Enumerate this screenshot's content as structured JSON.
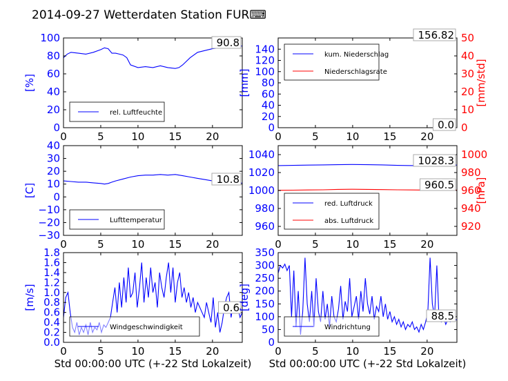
{
  "title": "2014-09-27 Wetterdaten Station FUR⌨",
  "colors": {
    "blue": "#0000ff",
    "red": "#ff0000",
    "black": "#000000",
    "light_blue": "#9999ff"
  },
  "chart_data": [
    {
      "id": "humidity",
      "type": "line",
      "xlim": [
        0,
        24
      ],
      "ylim": [
        0,
        100
      ],
      "xticks": [
        "0",
        "5",
        "10",
        "15",
        "20"
      ],
      "yticks": [
        "0",
        "20",
        "40",
        "60",
        "80",
        "100"
      ],
      "ylabel": "[%]",
      "xlabel": "",
      "legend_placement": "lower-left",
      "annotation": "90.8",
      "series": [
        {
          "name": "rel. Luftfeuchte",
          "color": "#0000ff",
          "x": [
            0,
            0.5,
            1,
            2,
            3,
            4,
            5,
            5.5,
            6,
            6.5,
            7,
            7.5,
            8,
            8.5,
            9,
            10,
            11,
            12,
            13,
            14,
            15,
            15.5,
            16,
            17,
            18,
            19,
            20,
            21,
            22,
            23,
            24
          ],
          "y": [
            78,
            82,
            84,
            83,
            82,
            84,
            87,
            89,
            88,
            83,
            83,
            82,
            81,
            78,
            70,
            67,
            68,
            67,
            69,
            67,
            66,
            67,
            70,
            78,
            84,
            86,
            88,
            89,
            90,
            91,
            91
          ]
        }
      ]
    },
    {
      "id": "precipitation",
      "type": "line",
      "xlim": [
        0,
        24
      ],
      "ylim": [
        0,
        160
      ],
      "ylim_right": [
        0,
        50
      ],
      "xticks": [
        "0",
        "5",
        "10",
        "15",
        "20"
      ],
      "yticks": [
        "0",
        "20",
        "40",
        "60",
        "80",
        "100",
        "120",
        "140"
      ],
      "yticks_right": [
        "0",
        "10",
        "20",
        "30",
        "40",
        "50"
      ],
      "ylabel": "[mm]",
      "ylabel_right": "[mm/std]",
      "xlabel": "",
      "legend_placement": "upper-left",
      "annotation": "156.82",
      "annotation_right": "0.0",
      "series": [
        {
          "name": "kum. Niederschlag",
          "color": "#0000ff",
          "axis": "left",
          "x": [
            0,
            24
          ],
          "y": [
            0,
            0
          ]
        },
        {
          "name": "Niederschlagsrate",
          "color": "#ff0000",
          "axis": "right",
          "x": [
            0,
            24
          ],
          "y": [
            0,
            0
          ]
        }
      ]
    },
    {
      "id": "temperature",
      "type": "line",
      "xlim": [
        0,
        24
      ],
      "ylim": [
        -30,
        40
      ],
      "xticks": [
        "0",
        "5",
        "10",
        "15",
        "20"
      ],
      "yticks": [
        "−30",
        "−20",
        "−10",
        "0",
        "10",
        "20",
        "30",
        "40"
      ],
      "ylabel": "[C]",
      "xlabel": "",
      "legend_placement": "lower-left",
      "annotation": "10.8",
      "series": [
        {
          "name": "Lufttemperatur",
          "color": "#0000ff",
          "x": [
            0,
            1,
            2,
            3,
            4,
            5,
            5.5,
            6,
            6.5,
            7,
            8,
            9,
            10,
            11,
            12,
            13,
            14,
            15,
            16,
            17,
            18,
            19,
            20,
            21,
            22,
            23,
            24
          ],
          "y": [
            12.5,
            12,
            11.5,
            11.5,
            11,
            10.5,
            10,
            10.5,
            11.5,
            12.5,
            14,
            15.5,
            16.5,
            17,
            17,
            17.5,
            17,
            17.5,
            16.5,
            15.5,
            14.5,
            13.5,
            12.5,
            11.5,
            11,
            10.8,
            10.8
          ]
        }
      ]
    },
    {
      "id": "pressure",
      "type": "line",
      "xlim": [
        0,
        24
      ],
      "ylim": [
        950,
        1050
      ],
      "ylim_right": [
        910,
        1010
      ],
      "xticks": [
        "0",
        "5",
        "10",
        "15",
        "20"
      ],
      "yticks": [
        "960",
        "980",
        "1000",
        "1020",
        "1040"
      ],
      "yticks_right": [
        "920",
        "940",
        "960",
        "980",
        "1000"
      ],
      "ylabel": "",
      "ylabel_right": "[hPa]",
      "xlabel": "",
      "legend_placement": "lower-left",
      "annotation": "1028.3",
      "annotation_right": "960.5",
      "series": [
        {
          "name": "red. Luftdruck",
          "color": "#0000ff",
          "axis": "left",
          "x": [
            0,
            2,
            4,
            6,
            8,
            10,
            12,
            14,
            16,
            18,
            20,
            22,
            24
          ],
          "y": [
            1027.8,
            1028,
            1028.3,
            1028.5,
            1028.8,
            1029,
            1028.8,
            1028.5,
            1028,
            1027.8,
            1028,
            1028.2,
            1028.3
          ]
        },
        {
          "name": "abs. Luftdruck",
          "color": "#ff0000",
          "axis": "right",
          "x": [
            0,
            2,
            4,
            6,
            8,
            10,
            12,
            14,
            16,
            18,
            20,
            22,
            24
          ],
          "y": [
            960.2,
            960.4,
            960.6,
            960.8,
            961.2,
            961.4,
            961.2,
            961,
            960.8,
            960.6,
            960.5,
            960.5,
            960.5
          ]
        }
      ]
    },
    {
      "id": "wind_speed",
      "type": "line",
      "xlim": [
        0,
        24
      ],
      "ylim": [
        0,
        1.8
      ],
      "xticks": [
        "0",
        "5",
        "10",
        "15",
        "20"
      ],
      "yticks": [
        "0.0",
        "0.2",
        "0.4",
        "0.6",
        "0.8",
        "1.0",
        "1.2",
        "1.4",
        "1.6",
        "1.8"
      ],
      "ylabel": "[m/s]",
      "xlabel": "Std 00:00:00 UTC (+-22 Std Lokalzeit)",
      "legend_placement": "lower-left",
      "annotation": "0.6",
      "series": [
        {
          "name": "Windgeschwindigkeit",
          "color": "#0000ff",
          "x": [
            0,
            0.3,
            0.6,
            0.9,
            1.2,
            1.5,
            1.8,
            2.1,
            2.4,
            2.7,
            3,
            3.3,
            3.6,
            3.9,
            4.2,
            4.5,
            4.8,
            5.1,
            5.4,
            5.7,
            6,
            6.3,
            6.6,
            6.9,
            7.2,
            7.5,
            7.8,
            8.1,
            8.4,
            8.7,
            9,
            9.3,
            9.6,
            9.9,
            10.2,
            10.5,
            10.8,
            11.1,
            11.4,
            11.7,
            12,
            12.3,
            12.6,
            12.9,
            13.2,
            13.5,
            13.8,
            14.1,
            14.4,
            14.7,
            15,
            15.3,
            15.6,
            15.9,
            16.2,
            16.5,
            16.8,
            17.1,
            17.4,
            17.7,
            18,
            18.3,
            18.6,
            18.9,
            19.2,
            19.5,
            19.8,
            20.1,
            20.4,
            20.7,
            21,
            21.3,
            21.6,
            21.9,
            22.2,
            22.5,
            22.8,
            23.1,
            23.4,
            23.7,
            24
          ],
          "y": [
            0.5,
            0.9,
            1.0,
            0.6,
            0.3,
            0.2,
            0.4,
            0.15,
            0.3,
            0.2,
            0.35,
            0.15,
            0.4,
            0.2,
            0.3,
            0.25,
            0.4,
            0.2,
            0.35,
            0.3,
            0.4,
            0.5,
            0.8,
            1.1,
            0.6,
            1.2,
            0.7,
            1.3,
            0.8,
            1.5,
            0.9,
            1.0,
            1.4,
            0.7,
            1.1,
            1.6,
            0.8,
            1.3,
            0.9,
            1.5,
            1.0,
            1.2,
            0.7,
            1.4,
            1.1,
            0.9,
            1.3,
            1.6,
            1.0,
            1.5,
            0.8,
            1.2,
            1.4,
            0.9,
            1.1,
            0.8,
            1.0,
            0.7,
            0.9,
            0.6,
            0.8,
            0.7,
            0.6,
            0.5,
            0.8,
            0.6,
            0.4,
            0.9,
            0.3,
            0.6,
            0.2,
            0.4,
            0.7,
            0.9,
            1.0,
            0.5,
            0.8,
            0.6,
            0.7,
            0.5,
            0.6
          ]
        }
      ]
    },
    {
      "id": "wind_direction",
      "type": "line",
      "xlim": [
        0,
        24
      ],
      "ylim": [
        0,
        350
      ],
      "xticks": [
        "0",
        "5",
        "10",
        "15",
        "20"
      ],
      "yticks": [
        "0",
        "50",
        "100",
        "150",
        "200",
        "250",
        "300",
        "350"
      ],
      "ylabel": "[deg]",
      "xlabel": "Std 00:00:00 UTC (+-22 Std Lokalzeit)",
      "legend_placement": "lower-left",
      "annotation": "88.5",
      "series": [
        {
          "name": "Windrichtung",
          "color": "#0000ff",
          "x": [
            0,
            0.3,
            0.6,
            0.9,
            1.2,
            1.5,
            1.8,
            2.1,
            2.4,
            2.7,
            3,
            3.3,
            3.6,
            3.9,
            4.2,
            4.5,
            4.8,
            5.1,
            5.4,
            5.7,
            6,
            6.3,
            6.6,
            6.9,
            7.2,
            7.5,
            7.8,
            8.1,
            8.4,
            8.7,
            9,
            9.3,
            9.6,
            9.9,
            10.2,
            10.5,
            10.8,
            11.1,
            11.4,
            11.7,
            12,
            12.3,
            12.6,
            12.9,
            13.2,
            13.5,
            13.8,
            14.1,
            14.4,
            14.7,
            15,
            15.3,
            15.6,
            15.9,
            16.2,
            16.5,
            16.8,
            17.1,
            17.4,
            17.7,
            18,
            18.3,
            18.6,
            18.9,
            19.2,
            19.5,
            19.8,
            20.1,
            20.4,
            20.7,
            21,
            21.3,
            21.6,
            21.9,
            22.2,
            22.5,
            22.8,
            23.1,
            23.4,
            23.7,
            24
          ],
          "y": [
            270,
            300,
            290,
            305,
            280,
            300,
            100,
            280,
            60,
            200,
            30,
            120,
            330,
            150,
            80,
            200,
            60,
            250,
            120,
            80,
            200,
            90,
            150,
            60,
            180,
            100,
            80,
            130,
            220,
            90,
            160,
            120,
            250,
            100,
            140,
            180,
            90,
            200,
            120,
            250,
            150,
            110,
            180,
            90,
            140,
            120,
            180,
            100,
            150,
            90,
            120,
            80,
            100,
            70,
            90,
            60,
            80,
            50,
            70,
            60,
            80,
            50,
            60,
            40,
            70,
            50,
            80,
            120,
            330,
            150,
            100,
            300,
            90,
            80,
            100,
            70,
            90,
            80,
            85,
            88,
            88
          ]
        }
      ]
    }
  ]
}
